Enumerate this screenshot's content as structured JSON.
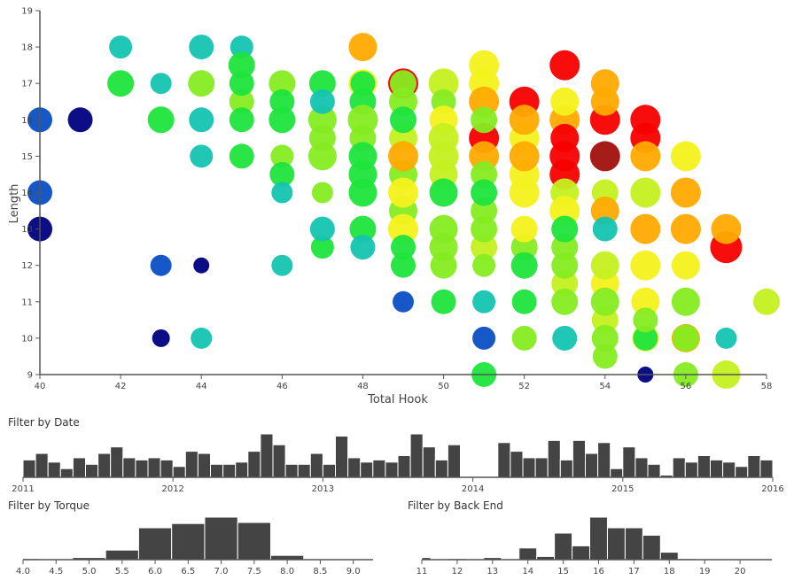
{
  "palette": {
    "N": "#00007f",
    "B": "#0a4fc4",
    "T": "#14c4b0",
    "G": "#1fe43c",
    "L": "#86ec22",
    "YG": "#c4f020",
    "Y": "#f4f21c",
    "O": "#ffaa00",
    "R": "#f80000",
    "D": "#a0100c"
  },
  "chart_data": [
    {
      "type": "scatter",
      "xlabel": "Total Hook",
      "ylabel": "Length",
      "xlim": [
        40,
        58
      ],
      "ylim": [
        9,
        19
      ],
      "xticks": [
        "40",
        "42",
        "44",
        "46",
        "48",
        "50",
        "52",
        "54",
        "56",
        "58"
      ],
      "yticks": [
        "9",
        "10",
        "11",
        "12",
        "13",
        "14",
        "15",
        "16",
        "17",
        "18",
        "19"
      ],
      "point_fields": [
        "x",
        "y",
        "size",
        "color"
      ],
      "points": [
        [
          40,
          16,
          6,
          "B"
        ],
        [
          40,
          14,
          6,
          "B"
        ],
        [
          40,
          13,
          6,
          "N"
        ],
        [
          41,
          16,
          6,
          "N"
        ],
        [
          42,
          18,
          5,
          "T"
        ],
        [
          42,
          17,
          7,
          "G"
        ],
        [
          43,
          17,
          4,
          "T"
        ],
        [
          43,
          16,
          7,
          "G"
        ],
        [
          43,
          12,
          4,
          "B"
        ],
        [
          43,
          10,
          2,
          "N"
        ],
        [
          44,
          18,
          6,
          "T"
        ],
        [
          44,
          17,
          7,
          "L"
        ],
        [
          44,
          16,
          6,
          "T"
        ],
        [
          44,
          15,
          5,
          "T"
        ],
        [
          44,
          12,
          1,
          "N"
        ],
        [
          44,
          10,
          4,
          "T"
        ],
        [
          45,
          18,
          5,
          "T"
        ],
        [
          45,
          16.5,
          6,
          "L"
        ],
        [
          45,
          17.5,
          7,
          "G"
        ],
        [
          45,
          17,
          6,
          "G"
        ],
        [
          45,
          16,
          6,
          "G"
        ],
        [
          45,
          15,
          6,
          "G"
        ],
        [
          46,
          17,
          7,
          "L"
        ],
        [
          46,
          16.5,
          6,
          "G"
        ],
        [
          46,
          16,
          7,
          "G"
        ],
        [
          46,
          15,
          5,
          "L"
        ],
        [
          46,
          14.5,
          6,
          "G"
        ],
        [
          46,
          14,
          4,
          "T"
        ],
        [
          46,
          12,
          4,
          "T"
        ],
        [
          47,
          17,
          7,
          "G"
        ],
        [
          47,
          16,
          8,
          "L"
        ],
        [
          47,
          15.5,
          7,
          "L"
        ],
        [
          47,
          15,
          8,
          "L"
        ],
        [
          47,
          16.5,
          6,
          "T"
        ],
        [
          47,
          14,
          4,
          "L"
        ],
        [
          47,
          12.5,
          5,
          "G"
        ],
        [
          47,
          13,
          6,
          "T"
        ],
        [
          48,
          18,
          8,
          "O"
        ],
        [
          48,
          17,
          8,
          "Y"
        ],
        [
          48,
          17,
          6,
          "G"
        ],
        [
          48,
          16.5,
          7,
          "G"
        ],
        [
          48,
          16,
          9,
          "L"
        ],
        [
          48,
          15.5,
          7,
          "L"
        ],
        [
          48,
          15,
          8,
          "G"
        ],
        [
          48,
          14.5,
          8,
          "G"
        ],
        [
          48,
          14,
          8,
          "G"
        ],
        [
          48,
          13,
          7,
          "G"
        ],
        [
          48,
          12.5,
          6,
          "T"
        ],
        [
          49,
          17,
          9,
          "R"
        ],
        [
          49,
          17,
          7,
          "L"
        ],
        [
          49,
          16.5,
          8,
          "L"
        ],
        [
          49,
          15.5,
          8,
          "YG"
        ],
        [
          49,
          16,
          7,
          "G"
        ],
        [
          49,
          14.5,
          8,
          "L"
        ],
        [
          49,
          15,
          9,
          "O"
        ],
        [
          49,
          13.5,
          8,
          "L"
        ],
        [
          49,
          14,
          9,
          "Y"
        ],
        [
          49,
          13,
          9,
          "Y"
        ],
        [
          49,
          12.5,
          6,
          "G"
        ],
        [
          49,
          12,
          6,
          "G"
        ],
        [
          49,
          11,
          4,
          "B"
        ],
        [
          50,
          17,
          9,
          "YG"
        ],
        [
          50,
          16.5,
          6,
          "L"
        ],
        [
          50,
          16,
          8,
          "Y"
        ],
        [
          50,
          15.5,
          9,
          "YG"
        ],
        [
          50,
          15,
          9,
          "YG"
        ],
        [
          50,
          14.5,
          8,
          "YG"
        ],
        [
          50,
          14,
          8,
          "G"
        ],
        [
          50,
          13,
          8,
          "L"
        ],
        [
          50,
          12.5,
          8,
          "L"
        ],
        [
          50,
          12,
          7,
          "L"
        ],
        [
          50,
          11,
          6,
          "G"
        ],
        [
          51,
          17.5,
          9,
          "Y"
        ],
        [
          51,
          17,
          9,
          "Y"
        ],
        [
          51,
          16.5,
          9,
          "O"
        ],
        [
          51,
          15.5,
          9,
          "R"
        ],
        [
          51,
          15,
          9,
          "O"
        ],
        [
          51,
          16,
          7,
          "L"
        ],
        [
          51,
          14.5,
          7,
          "L"
        ],
        [
          51,
          13.5,
          7,
          "L"
        ],
        [
          51,
          14,
          7,
          "G"
        ],
        [
          51,
          12.5,
          7,
          "YG"
        ],
        [
          51,
          13,
          7,
          "L"
        ],
        [
          51,
          12,
          5,
          "L"
        ],
        [
          51,
          11,
          5,
          "T"
        ],
        [
          51,
          10,
          5,
          "B"
        ],
        [
          51,
          9,
          6,
          "G"
        ],
        [
          52,
          16.5,
          9,
          "R"
        ],
        [
          52,
          15.5,
          9,
          "Y"
        ],
        [
          52,
          16,
          9,
          "O"
        ],
        [
          52,
          14.5,
          9,
          "Y"
        ],
        [
          52,
          15,
          9,
          "O"
        ],
        [
          52,
          14,
          9,
          "Y"
        ],
        [
          52,
          12.5,
          7,
          "L"
        ],
        [
          52,
          13,
          7,
          "Y"
        ],
        [
          52,
          12,
          7,
          "G"
        ],
        [
          52,
          11,
          6,
          "G"
        ],
        [
          52,
          10,
          6,
          "L"
        ],
        [
          53,
          17.5,
          9,
          "R"
        ],
        [
          53,
          16,
          9,
          "O"
        ],
        [
          53,
          16.5,
          8,
          "Y"
        ],
        [
          53,
          15.5,
          8,
          "R"
        ],
        [
          53,
          15,
          9,
          "R"
        ],
        [
          53,
          14.5,
          9,
          "R"
        ],
        [
          53,
          14,
          8,
          "YG"
        ],
        [
          53,
          13.5,
          9,
          "Y"
        ],
        [
          53,
          12.5,
          7,
          "L"
        ],
        [
          53,
          13,
          7,
          "G"
        ],
        [
          53,
          11.5,
          7,
          "YG"
        ],
        [
          53,
          12,
          7,
          "L"
        ],
        [
          53,
          11,
          7,
          "L"
        ],
        [
          53,
          10,
          6,
          "T"
        ],
        [
          54,
          17,
          8,
          "O"
        ],
        [
          54,
          16,
          9,
          "R"
        ],
        [
          54,
          16.5,
          8,
          "O"
        ],
        [
          54,
          15,
          9,
          "D"
        ],
        [
          54,
          14,
          7,
          "YG"
        ],
        [
          54,
          13.5,
          8,
          "O"
        ],
        [
          54,
          13,
          6,
          "T"
        ],
        [
          54,
          11.5,
          8,
          "Y"
        ],
        [
          54,
          12,
          8,
          "YG"
        ],
        [
          54,
          10.5,
          7,
          "YG"
        ],
        [
          54,
          11,
          8,
          "L"
        ],
        [
          54,
          9.5,
          6,
          "L"
        ],
        [
          54,
          10,
          7,
          "L"
        ],
        [
          55,
          16,
          9,
          "R"
        ],
        [
          55,
          15.5,
          9,
          "R"
        ],
        [
          55,
          15,
          9,
          "O"
        ],
        [
          55,
          14,
          9,
          "YG"
        ],
        [
          55,
          13,
          9,
          "O"
        ],
        [
          55,
          12,
          9,
          "Y"
        ],
        [
          55,
          11,
          8,
          "Y"
        ],
        [
          55,
          10,
          7,
          "Y"
        ],
        [
          55,
          10,
          6,
          "G"
        ],
        [
          55,
          10.5,
          6,
          "L"
        ],
        [
          55,
          9,
          1,
          "N"
        ],
        [
          56,
          15,
          9,
          "Y"
        ],
        [
          56,
          14,
          9,
          "O"
        ],
        [
          56,
          13,
          9,
          "O"
        ],
        [
          56,
          12,
          8,
          "Y"
        ],
        [
          56,
          11,
          8,
          "L"
        ],
        [
          56,
          10,
          8,
          "O"
        ],
        [
          56,
          10,
          7,
          "L"
        ],
        [
          56,
          9,
          6,
          "L"
        ],
        [
          57,
          12.5,
          10,
          "R"
        ],
        [
          57,
          13,
          9,
          "O"
        ],
        [
          57,
          10,
          4,
          "T"
        ],
        [
          57,
          9,
          8,
          "YG"
        ],
        [
          58,
          11,
          7,
          "YG"
        ]
      ]
    },
    {
      "type": "bar",
      "title": "Filter by Date",
      "xlim": [
        2011,
        2016
      ],
      "xticks": [
        "2011",
        "2012",
        "2013",
        "2014",
        "2015",
        "2016"
      ],
      "bin": "month",
      "values": [
        8,
        11,
        7,
        4,
        9,
        6,
        11,
        14,
        9,
        8,
        9,
        8,
        5,
        12,
        11,
        6,
        6,
        7,
        12,
        20,
        15,
        6,
        6,
        11,
        6,
        19,
        9,
        7,
        8,
        7,
        10,
        20,
        14,
        8,
        15,
        0,
        0,
        0,
        16,
        12,
        9,
        9,
        17,
        8,
        17,
        11,
        16,
        4,
        14,
        9,
        6,
        1,
        9,
        7,
        10,
        8,
        7,
        5,
        10,
        8
      ]
    },
    {
      "type": "bar",
      "title": "Filter by Torque",
      "xlim": [
        4.0,
        9.3
      ],
      "xticks": [
        "4.0",
        "4.5",
        "5.0",
        "5.5",
        "6.0",
        "6.5",
        "7.0",
        "7.5",
        "8.0",
        "8.5",
        "9.0"
      ],
      "bins": [
        4.0,
        4.5,
        5.0,
        5.5,
        6.0,
        6.5,
        7.0,
        7.5,
        8.0,
        8.5,
        9.0
      ],
      "values": [
        1,
        0,
        2,
        9,
        30,
        34,
        40,
        35,
        4,
        0,
        0
      ]
    },
    {
      "type": "bar",
      "title": "Filter by Back End",
      "xlim": [
        11,
        20.9
      ],
      "xticks": [
        "11",
        "12",
        "13",
        "14",
        "15",
        "16",
        "17",
        "18",
        "19",
        "20"
      ],
      "bins": [
        11,
        11.5,
        12,
        12.5,
        13,
        13.5,
        14,
        14.5,
        15,
        15.5,
        16,
        16.5,
        17,
        17.5,
        18,
        18.5,
        19,
        19.5,
        20,
        20.5
      ],
      "values": [
        2,
        0.5,
        1,
        0,
        2,
        0.5,
        11,
        3,
        25,
        13,
        40,
        30,
        30,
        23,
        7,
        1,
        0,
        0,
        0,
        0
      ]
    }
  ]
}
